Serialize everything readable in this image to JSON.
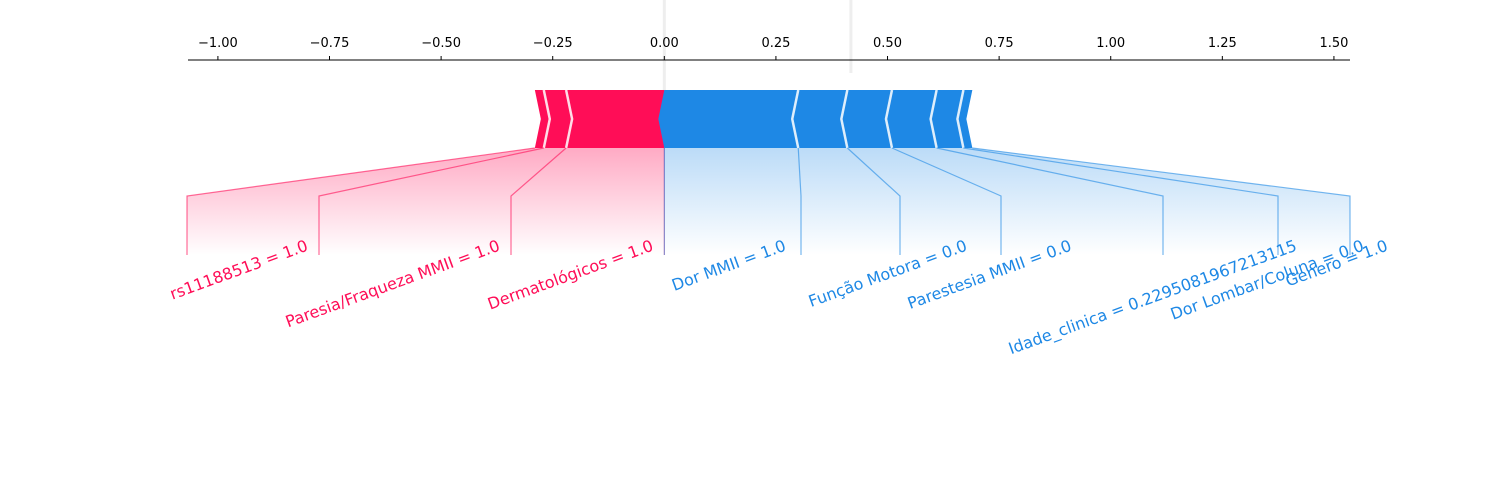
{
  "chart_data": {
    "type": "force",
    "xlim": [
      -1.067,
      1.536
    ],
    "xticks": [
      {
        "value": -1,
        "label": "−1.00"
      },
      {
        "value": -0.75,
        "label": "−0.75"
      },
      {
        "value": -0.5,
        "label": "−0.50"
      },
      {
        "value": -0.25,
        "label": "−0.25"
      },
      {
        "value": 0,
        "label": "0.00"
      },
      {
        "value": 0.25,
        "label": "0.25"
      },
      {
        "value": 0.5,
        "label": "0.50"
      },
      {
        "value": 0.75,
        "label": "0.75"
      },
      {
        "value": 1,
        "label": "1.00"
      },
      {
        "value": 1.25,
        "label": "1.25"
      },
      {
        "value": 1.5,
        "label": "1.50"
      }
    ],
    "output_value": {
      "value": 0,
      "label": "0.00"
    },
    "base_value": 0.418,
    "positive_color": "#ff0d57",
    "negative_color": "#1e88e5",
    "positive": [
      {
        "label": "Dermatológicos = 1.0",
        "value": 0.22
      },
      {
        "label": "Paresia/Fraqueza MMII = 1.0",
        "value": 0.05
      },
      {
        "label": "rs11188513 = 1.0",
        "value": 0.02
      }
    ],
    "negative": [
      {
        "label": "Dor MMII = 1.0",
        "value": 0.3
      },
      {
        "label": "Função Motora = 0.0",
        "value": 0.11
      },
      {
        "label": "Parestesia MMII = 0.0",
        "value": 0.1
      },
      {
        "label": "Idade_clinica = 0.2295081967213115",
        "value": 0.1
      },
      {
        "label": "Dor Lombar/Coluna = 0.0",
        "value": 0.06
      },
      {
        "label": "Genero = 1.0",
        "value": 0.02
      }
    ]
  }
}
